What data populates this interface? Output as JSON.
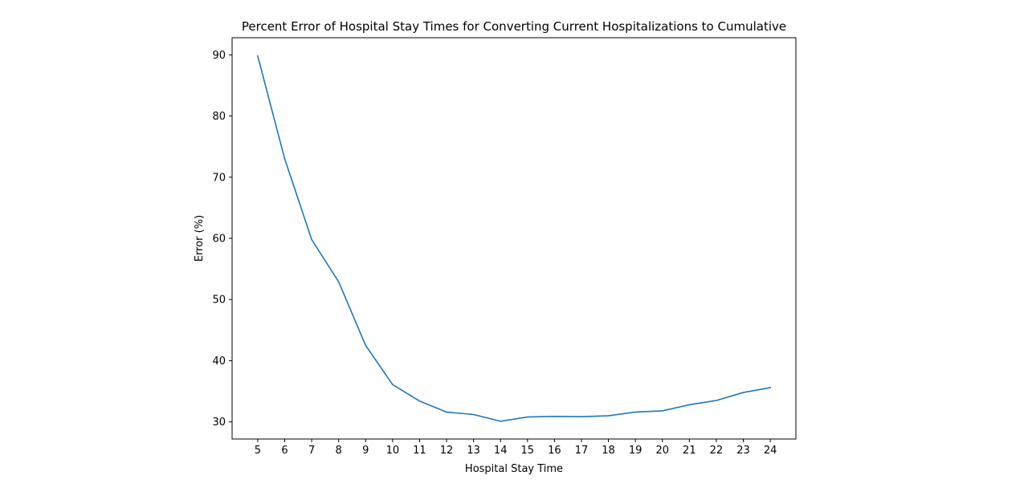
{
  "chart_data": {
    "type": "line",
    "title": "Percent Error of Hospital Stay Times for Converting Current Hospitalizations to Cumulative",
    "xlabel": "Hospital Stay Time",
    "ylabel": "Error (%)",
    "x": [
      5,
      6,
      7,
      8,
      9,
      10,
      11,
      12,
      13,
      14,
      15,
      16,
      17,
      18,
      19,
      20,
      21,
      22,
      23,
      24
    ],
    "series": [
      {
        "values": [
          89.8,
          73.0,
          59.8,
          52.9,
          42.5,
          36.1,
          33.4,
          31.6,
          31.2,
          30.1,
          30.8,
          30.9,
          30.85,
          31.0,
          31.6,
          31.8,
          32.8,
          33.5,
          34.8,
          35.6
        ],
        "color": "#1f77b4"
      }
    ],
    "xlim": [
      4.05,
      24.95
    ],
    "ylim": [
      27.2,
      92.8
    ],
    "xticks": [
      "5",
      "6",
      "7",
      "8",
      "9",
      "10",
      "11",
      "12",
      "13",
      "14",
      "15",
      "16",
      "17",
      "18",
      "19",
      "20",
      "21",
      "22",
      "23",
      "24"
    ],
    "yticks": [
      "30",
      "40",
      "50",
      "60",
      "70",
      "80",
      "90"
    ],
    "grid": false,
    "legend": "none"
  }
}
